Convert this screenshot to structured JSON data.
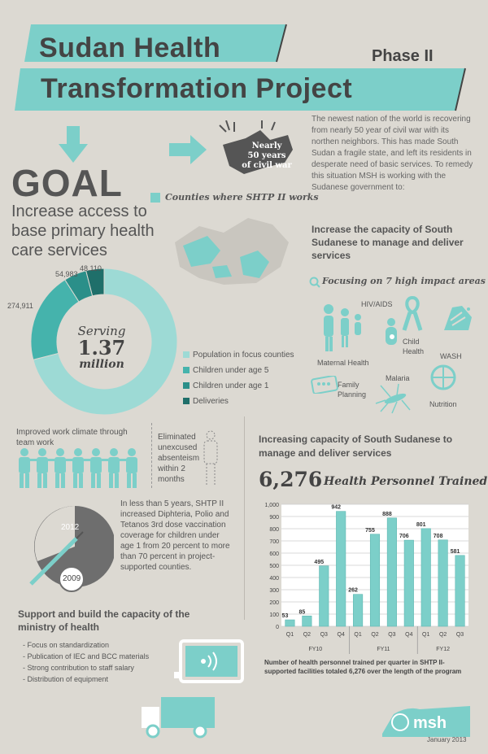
{
  "header": {
    "title_line1": "Sudan Health",
    "title_line2": "Transformation Project",
    "phase": "Phase II"
  },
  "goal": {
    "heading": "GOAL",
    "subtitle": "Increase access to base primary health care services"
  },
  "civil_war_badge": {
    "line1": "Nearly",
    "line2": "50 years",
    "line3": "of civil war"
  },
  "intro_text": "The newest nation of the world is recovering from nearly 50 year of civil war with its northen neighbors. This has made South Sudan a fragile state, and left its residents in desperate need of basic services. To remedy this situation MSH is working with the Sudanese government to:",
  "map": {
    "legend_label": "Counties where SHTP II works"
  },
  "capacity": {
    "heading": "Increase  the capacity of South Sudanese to manage and deliver services",
    "focus_label": "Focusing on 7 high impact areas",
    "areas": [
      "Maternal Health",
      "HIV/AIDS",
      "Child Health",
      "WASH",
      "Family Planning",
      "Malaria",
      "Nutrition"
    ]
  },
  "donut": {
    "center_line1": "Serving",
    "center_line2": "1.37",
    "center_line3": "million",
    "slices": [
      {
        "label": "Population in focus counties",
        "value": null,
        "color": "#9ddad5"
      },
      {
        "label": "Children under age 5",
        "value": "274,911",
        "color": "#45b3ac"
      },
      {
        "label": "Children under age 1",
        "value": "54,983",
        "color": "#2b8f89"
      },
      {
        "label": "Deliveries",
        "value": "48,110",
        "color": "#1f6f6a"
      }
    ]
  },
  "work_climate": "Improved work climate through team work",
  "absenteeism": "Eliminated unexcused absenteism within 2 months",
  "vaccination": {
    "year_start": "2009",
    "year_end": "2012",
    "text": "In less than 5 years, SHTP II increased Diphteria, Polio and Tetanos 3rd dose vaccination coverage for children under age 1 from 20 percent to more than 70 percent in project-supported counties."
  },
  "training": {
    "heading": "Increasing capacity of South Sudanese to manage and deliver services",
    "total": "6,276",
    "total_label": "Health Personnel Trained",
    "caption": "Number of health personnel trained per quarter in SHTP II-supported facilities totaled 6,276 over the length of the program"
  },
  "support": {
    "heading": "Support and build the capacity of the ministry of health",
    "items": [
      "- Focus on standardization",
      "- Publication of IEC and BCC materials",
      "- Strong contribution to staff salary",
      "- Distribution of equipment"
    ]
  },
  "footer": {
    "logo": "msh",
    "date": "January 2013"
  },
  "colors": {
    "accent": "#7ccfc9",
    "background": "#dcd9d2",
    "text": "#555555"
  },
  "chart_data": [
    {
      "type": "bar",
      "title": "",
      "groups": [
        "FY10",
        "FY11",
        "FY12"
      ],
      "categories": [
        "Q1",
        "Q2",
        "Q3",
        "Q4",
        "Q1",
        "Q2",
        "Q3",
        "Q4",
        "Q1",
        "Q2",
        "Q3"
      ],
      "group_index": [
        0,
        0,
        0,
        0,
        1,
        1,
        1,
        1,
        2,
        2,
        2
      ],
      "values": [
        53,
        85,
        495,
        942,
        262,
        755,
        888,
        706,
        801,
        708,
        581
      ],
      "ylim": [
        0,
        1000
      ],
      "yticks": [
        "0",
        "100",
        "200",
        "300",
        "400",
        "500",
        "600",
        "700",
        "800",
        "900",
        "1,000"
      ],
      "grid": true,
      "color": "#7ccfc9"
    },
    {
      "type": "pie",
      "title": "",
      "labels": [
        "Population in focus counties",
        "Children under age 5",
        "Children under age 1",
        "Deliveries"
      ],
      "values": [
        null,
        274911,
        54983,
        48110
      ]
    }
  ]
}
